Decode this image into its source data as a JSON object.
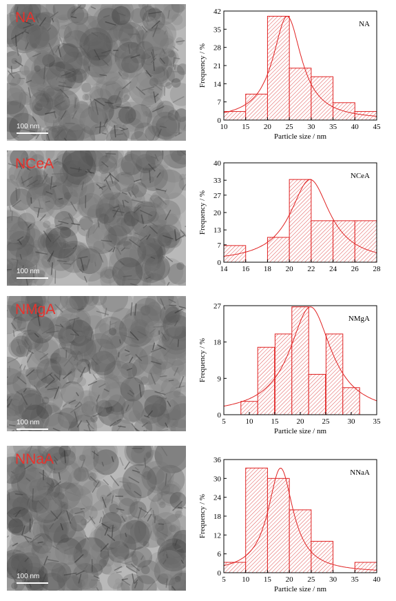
{
  "panels": [
    {
      "tem_label": "NA",
      "scale_text": "100 nm",
      "tem_tone": "#7f7f7f",
      "chart_data": {
        "type": "bar",
        "legend": "NA",
        "xlabel": "Particle size / nm",
        "ylabel": "Frequency / %",
        "xlim": [
          10,
          45
        ],
        "ylim": [
          0,
          42
        ],
        "xticks": [
          10,
          15,
          20,
          25,
          30,
          35,
          40,
          45
        ],
        "yticks": [
          0,
          7,
          14,
          21,
          28,
          35,
          42
        ],
        "bin_width": 5,
        "bins": [
          {
            "center": 12.5,
            "value": 3.3
          },
          {
            "center": 17.5,
            "value": 10
          },
          {
            "center": 22.5,
            "value": 40
          },
          {
            "center": 27.5,
            "value": 20
          },
          {
            "center": 32.5,
            "value": 16.7
          },
          {
            "center": 37.5,
            "value": 6.7
          },
          {
            "center": 42.5,
            "value": 3.3
          }
        ],
        "fit": {
          "x0": 24.5,
          "peak": 40,
          "gamma": 4.0
        }
      }
    },
    {
      "tem_label": "NCeA",
      "scale_text": "100 nm",
      "tem_tone": "#8a8a8a",
      "chart_data": {
        "type": "bar",
        "legend": "NCeA",
        "xlabel": "",
        "ylabel": "Frequency / %",
        "xlim": [
          14,
          28
        ],
        "ylim": [
          0,
          40
        ],
        "xticks": [
          14,
          16,
          18,
          20,
          22,
          24,
          26,
          28
        ],
        "yticks": [
          0,
          7,
          13,
          20,
          27,
          33,
          40
        ],
        "bin_width": 2,
        "bins": [
          {
            "center": 15,
            "value": 6.7
          },
          {
            "center": 19,
            "value": 10
          },
          {
            "center": 21,
            "value": 33.3
          },
          {
            "center": 23,
            "value": 16.7
          },
          {
            "center": 25,
            "value": 16.7
          },
          {
            "center": 27,
            "value": 16.7
          }
        ],
        "fit": {
          "x0": 21.9,
          "peak": 33.3,
          "gamma": 2.2
        }
      }
    },
    {
      "tem_label": "NMgA",
      "scale_text": "100 nm",
      "tem_tone": "#858585",
      "chart_data": {
        "type": "bar",
        "legend": "NMgA",
        "xlabel": "Particle size / nm",
        "ylabel": "Frequency / %",
        "xlim": [
          5,
          35
        ],
        "ylim": [
          0,
          27
        ],
        "xticks": [
          5,
          10,
          15,
          20,
          25,
          30,
          35
        ],
        "yticks": [
          0,
          9,
          18,
          27
        ],
        "bin_width": 3.3,
        "bins": [
          {
            "center": 10.0,
            "value": 3.3
          },
          {
            "center": 13.3,
            "value": 16.7
          },
          {
            "center": 16.7,
            "value": 20
          },
          {
            "center": 20.0,
            "value": 26.7
          },
          {
            "center": 23.3,
            "value": 10
          },
          {
            "center": 26.7,
            "value": 20
          },
          {
            "center": 30.0,
            "value": 6.7
          }
        ],
        "fit": {
          "x0": 22.0,
          "peak": 26.7,
          "gamma": 5.0
        }
      }
    },
    {
      "tem_label": "NNaA",
      "scale_text": "100 nm",
      "tem_tone": "#7a7a7a",
      "chart_data": {
        "type": "bar",
        "legend": "NNaA",
        "xlabel": "Particle size / nm",
        "ylabel": "Frequency / %",
        "xlim": [
          5,
          40
        ],
        "ylim": [
          0,
          36
        ],
        "xticks": [
          5,
          10,
          15,
          20,
          25,
          30,
          35,
          40
        ],
        "yticks": [
          0,
          6,
          12,
          18,
          24,
          30,
          36
        ],
        "bin_width": 5,
        "bins": [
          {
            "center": 7.5,
            "value": 3.3
          },
          {
            "center": 12.5,
            "value": 33.3
          },
          {
            "center": 17.5,
            "value": 30
          },
          {
            "center": 22.5,
            "value": 20
          },
          {
            "center": 27.5,
            "value": 10
          },
          {
            "center": 37.5,
            "value": 3.3
          }
        ],
        "fit": {
          "x0": 18.0,
          "peak": 33.3,
          "gamma": 3.5
        }
      }
    }
  ]
}
